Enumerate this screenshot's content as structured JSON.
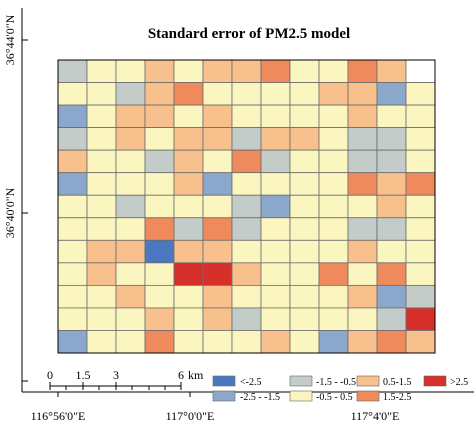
{
  "title": "Standard error of PM2.5 model",
  "lat_labels": [
    "36°44'0\"N",
    "36°40'0\"N"
  ],
  "lon_labels": [
    "116°56'0\"E",
    "117°0'0\"E",
    "117°4'0\"E"
  ],
  "scale_bar": {
    "ticks": [
      "0",
      "1.5",
      "3",
      "6"
    ],
    "unit": "km"
  },
  "legend": [
    {
      "label": "<-2.5",
      "color": "#4a78c0"
    },
    {
      "label": "-2.5 - -1.5",
      "color": "#8ca7cc"
    },
    {
      "label": "-1.5 - -0.5",
      "color": "#c3ccc9"
    },
    {
      "label": "-0.5 - 0.5",
      "color": "#fbf6c0"
    },
    {
      "label": "0.5-1.5",
      "color": "#f8c08c"
    },
    {
      "label": "1.5-2.5",
      "color": "#ef8a5c"
    },
    {
      "label": ">2.5",
      "color": "#d7302a"
    }
  ],
  "grid": {
    "rows": [
      "2334344533543",
      "3324533334413",
      "1344343333433",
      "2343442443223",
      "4332435233223",
      "1333413333545",
      "3323332133343",
      "3335252333223",
      "3440443333433",
      "3433664335353",
      "3343343333412",
      "3334342333326",
      "1335333431454"
    ],
    "blank_cells": [
      [
        0,
        12
      ]
    ]
  }
}
